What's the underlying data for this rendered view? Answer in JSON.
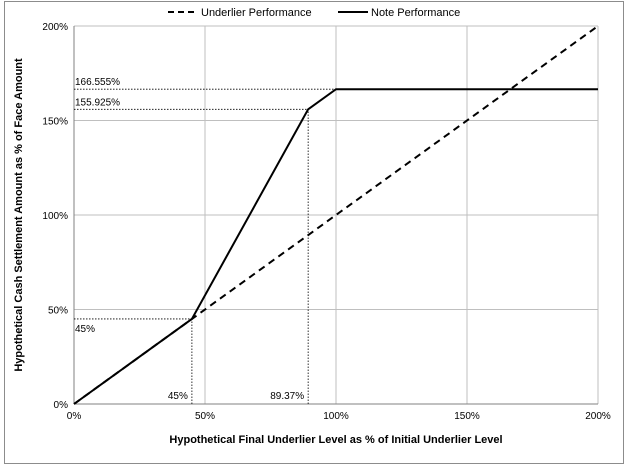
{
  "chart_data": {
    "type": "line",
    "xlabel": "Hypothetical Final Underlier Level as % of Initial Underlier Level",
    "ylabel": "Hypothetical Cash Settlement Amount as % of Face Amount",
    "xlim": [
      0,
      200
    ],
    "ylim": [
      0,
      200
    ],
    "x_ticks": [
      0,
      50,
      100,
      150,
      200
    ],
    "y_ticks": [
      0,
      50,
      100,
      150,
      200
    ],
    "x_tick_labels": [
      "0%",
      "50%",
      "100%",
      "150%",
      "200%"
    ],
    "y_tick_labels": [
      "0%",
      "50%",
      "100%",
      "150%",
      "200%"
    ],
    "grid": true,
    "legend_position": "top-center",
    "series": [
      {
        "name": "Underlier Performance",
        "style": "dashed",
        "color": "#000000",
        "x": [
          0,
          200
        ],
        "y": [
          0,
          200
        ]
      },
      {
        "name": "Note Performance",
        "style": "solid",
        "color": "#000000",
        "x": [
          0,
          45,
          89.37,
          100,
          200
        ],
        "y": [
          0,
          45,
          155.925,
          166.555,
          166.555
        ]
      }
    ],
    "annotations": [
      {
        "label": "166.555%",
        "axis": "y",
        "value": 166.555,
        "to_x": 100
      },
      {
        "label": "155.925%",
        "axis": "y",
        "value": 155.925,
        "to_x": 89.37
      },
      {
        "label": "45%",
        "axis": "y",
        "value": 45,
        "to_x": 45
      },
      {
        "label": "45%",
        "axis": "x",
        "value": 45,
        "to_y": 45
      },
      {
        "label": "89.37%",
        "axis": "x",
        "value": 89.37,
        "to_y": 155.925
      }
    ]
  }
}
